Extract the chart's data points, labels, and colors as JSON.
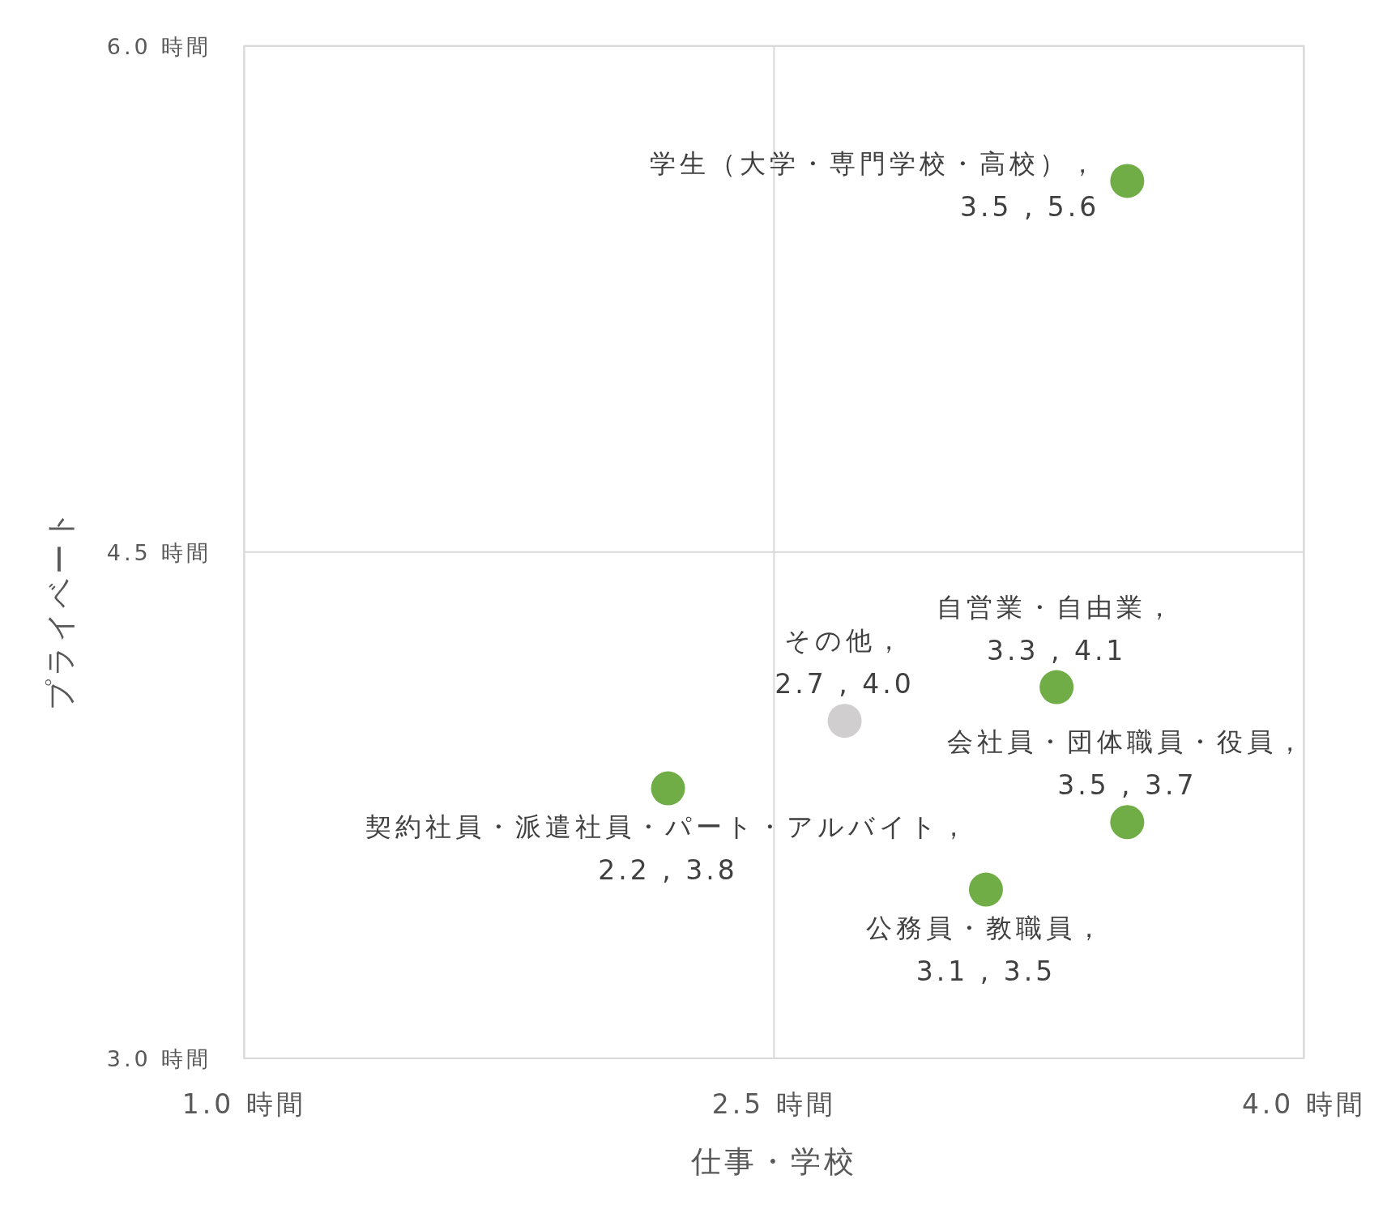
{
  "chart_data": {
    "type": "scatter",
    "xlabel": "仕事・学校",
    "ylabel": "プライベート",
    "xlim": [
      1,
      4
    ],
    "ylim": [
      3,
      6
    ],
    "xticks": [
      {
        "value": 1,
        "label": "1.0 時間"
      },
      {
        "value": 2.5,
        "label": "2.5 時間"
      },
      {
        "value": 4,
        "label": "4.0 時間"
      }
    ],
    "yticks": [
      {
        "value": 3,
        "label": "3.0 時間"
      },
      {
        "value": 4.5,
        "label": "4.5 時間"
      },
      {
        "value": 6,
        "label": "6.0 時間"
      }
    ],
    "grid": true,
    "marker": "circle",
    "series": [
      {
        "name": "学生（大学・専門学校・高校），",
        "color": "#70ad47",
        "x": [
          3.5
        ],
        "values": [
          5.6
        ],
        "value_labels": [
          "3.5 , 5.6"
        ]
      },
      {
        "name": "契約社員・派遣社員・パート・アルバイト，",
        "color": "#70ad47",
        "x": [
          2.2
        ],
        "values": [
          3.8
        ],
        "value_labels": [
          "2.2 , 3.8"
        ]
      },
      {
        "name": "その他，",
        "color": "#d0cece",
        "x": [
          2.7
        ],
        "values": [
          4.0
        ],
        "value_labels": [
          "2.7 , 4.0"
        ]
      },
      {
        "name": "自営業・自由業，",
        "color": "#70ad47",
        "x": [
          3.3
        ],
        "values": [
          4.1
        ],
        "value_labels": [
          "3.3 , 4.1"
        ]
      },
      {
        "name": "公務員・教職員，",
        "color": "#70ad47",
        "x": [
          3.1
        ],
        "values": [
          3.5
        ],
        "value_labels": [
          "3.1 , 3.5"
        ]
      },
      {
        "name": "会社員・団体職員・役員，",
        "color": "#70ad47",
        "x": [
          3.5
        ],
        "values": [
          3.7
        ],
        "value_labels": [
          "3.5 , 3.7"
        ]
      }
    ]
  }
}
